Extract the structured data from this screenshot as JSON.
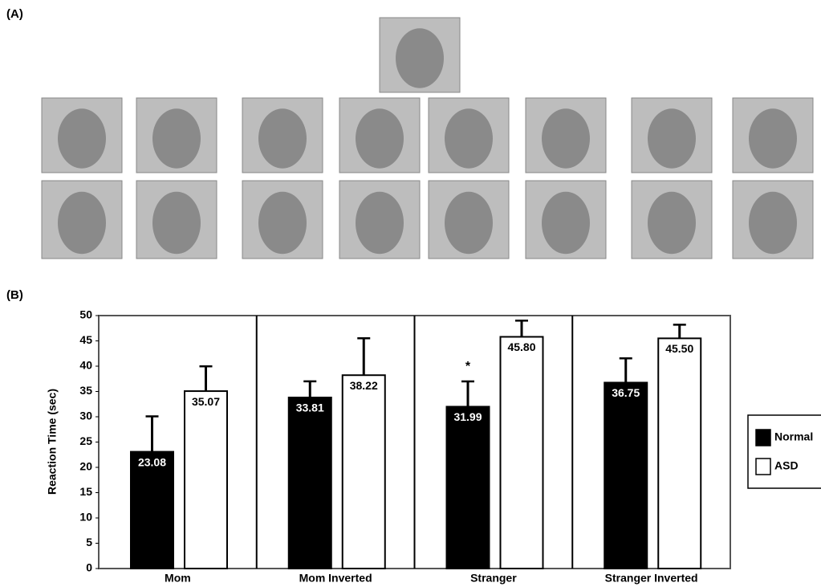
{
  "panel_a_label": "(A)",
  "chart_data": {
    "type": "bar",
    "panel_label": "(B)",
    "y_label": "Reaction Time (sec)",
    "categories": [
      "Mom",
      "Mom Inverted",
      "Stranger",
      "Stranger Inverted"
    ],
    "series": [
      {
        "name": "Normal",
        "color": "#000000",
        "values": [
          23.08,
          33.81,
          31.99,
          36.75
        ],
        "value_labels": [
          "23.08",
          "33.81",
          "31.99",
          "36.75"
        ],
        "errors": [
          7,
          3.2,
          5,
          4.8
        ]
      },
      {
        "name": "ASD",
        "color": "#ffffff",
        "values": [
          35.07,
          38.22,
          45.8,
          45.5
        ],
        "value_labels": [
          "35.07",
          "38.22",
          "45.80",
          "45.50"
        ],
        "errors": [
          4.9,
          7.3,
          3.2,
          2.7
        ]
      }
    ],
    "annotations": [
      {
        "text": "*",
        "category": 2
      }
    ],
    "ylim": [
      0,
      50
    ],
    "yticks": [
      0,
      5,
      10,
      15,
      20,
      25,
      30,
      35,
      40,
      45,
      50
    ],
    "legend": "right"
  }
}
